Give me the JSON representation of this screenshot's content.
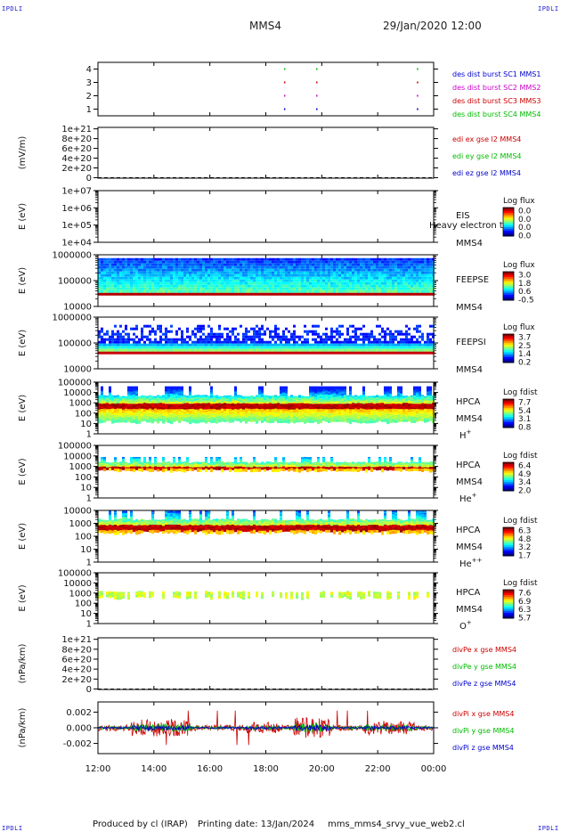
{
  "header": {
    "corner_label": "IPDLI",
    "spacecraft": "MMS4",
    "datetime": "29/Jan/2020 12:00"
  },
  "footer": {
    "produced_by": "Produced by cl (IRAP)",
    "printing_date": "Printing date: 13/Jan/2024",
    "script_name": "mms_mms4_srvy_vue_web2.cl"
  },
  "time_axis": {
    "tick_labels": [
      "12:00",
      "14:00",
      "16:00",
      "18:00",
      "20:00",
      "22:00",
      "00:00"
    ],
    "hours": [
      0,
      2,
      4,
      6,
      8,
      10,
      12
    ]
  },
  "colors": {
    "blue": "#0000cc",
    "magenta": "#cc00cc",
    "red": "#cc0000",
    "green": "#00bb00"
  },
  "chart_data": [
    {
      "id": "burst",
      "type": "scatter",
      "yticks": [
        "4",
        "3",
        "2",
        "1"
      ],
      "ylim": [
        0.5,
        4.5
      ],
      "legend": [
        {
          "text": "des dist burst SC1 MMS1",
          "color": "#0000cc"
        },
        {
          "text": "des dist burst SC2 MMS2",
          "color": "#cc00cc"
        },
        {
          "text": "des dist burst SC3 MMS3",
          "color": "#cc0000"
        },
        {
          "text": "des dist burst SC4 MMS4",
          "color": "#00bb00"
        }
      ],
      "x_hours": [
        6.65,
        7.8,
        11.4
      ]
    },
    {
      "id": "efield",
      "type": "line",
      "ylabel": "(mV/m)",
      "yticks": [
        "1e+21",
        "8e+20",
        "6e+20",
        "4e+20",
        "2e+20",
        "0"
      ],
      "ytick_values": [
        1e+21,
        8e+20,
        6e+20,
        4e+20,
        2e+20,
        0
      ],
      "ylim": [
        -1e+19,
        1.03e+21
      ],
      "legend": [
        {
          "text": "edi ex gse l2 MMS4",
          "color": "#cc0000"
        },
        {
          "text": "edi ey gse l2 MMS4",
          "color": "#00bb00"
        },
        {
          "text": "edi ez gse l2 MMS4",
          "color": "#0000cc"
        }
      ]
    },
    {
      "id": "eis",
      "type": "heatmap",
      "ylabel": "E (eV)",
      "yticks": [
        "1e+07",
        "1e+06",
        "1e+05",
        "1e+04"
      ],
      "log_range": [
        4,
        7
      ],
      "instrument": "EIS",
      "instrument_note": "Heavy electron to",
      "species": "MMS4",
      "colorbar_title": "Log flux",
      "colorbar_ticks": [
        "0.0",
        "0.0",
        "0.0",
        "0.0"
      ]
    },
    {
      "id": "feepse",
      "type": "heatmap",
      "ylabel": "E (eV)",
      "yticks": [
        "1000000",
        "100000",
        "10000"
      ],
      "log_range": [
        4,
        6
      ],
      "instrument": "FEEPSE",
      "species": "MMS4",
      "colorbar_title": "Log flux",
      "colorbar_ticks": [
        "3.0",
        "1.8",
        "0.6",
        "-0.5"
      ]
    },
    {
      "id": "feepsi",
      "type": "heatmap",
      "ylabel": "E (eV)",
      "yticks": [
        "1000000",
        "100000",
        "10000"
      ],
      "log_range": [
        4,
        6
      ],
      "instrument": "FEEPSI",
      "species": "MMS4",
      "colorbar_title": "Log flux",
      "colorbar_ticks": [
        "3.7",
        "2.5",
        "1.4",
        "0.2"
      ]
    },
    {
      "id": "hpca_h",
      "type": "heatmap",
      "ylabel": "E (eV)",
      "yticks": [
        "100000",
        "10000",
        "1000",
        "100",
        "10",
        "1"
      ],
      "log_range": [
        0,
        5
      ],
      "instrument": "HPCA",
      "species": "MMS4",
      "ion": "H",
      "ion_charge": "+",
      "colorbar_title": "Log fdist",
      "colorbar_ticks": [
        "7.7",
        "5.4",
        "3.1",
        "0.8"
      ]
    },
    {
      "id": "hpca_he",
      "type": "heatmap",
      "ylabel": "E (eV)",
      "yticks": [
        "100000",
        "10000",
        "1000",
        "100",
        "10",
        "1"
      ],
      "log_range": [
        0,
        5
      ],
      "instrument": "HPCA",
      "species": "MMS4",
      "ion": "He",
      "ion_charge": "+",
      "colorbar_title": "Log fdist",
      "colorbar_ticks": [
        "6.4",
        "4.9",
        "3.4",
        "2.0"
      ]
    },
    {
      "id": "hpca_hepp",
      "type": "heatmap",
      "ylabel": "E (eV)",
      "yticks": [
        "10000",
        "1000",
        "100",
        "10",
        "1"
      ],
      "log_range": [
        0,
        4
      ],
      "instrument": "HPCA",
      "species": "MMS4",
      "ion": "He",
      "ion_charge": "++",
      "colorbar_title": "Log fdist",
      "colorbar_ticks": [
        "6.3",
        "4.8",
        "3.2",
        "1.7"
      ]
    },
    {
      "id": "hpca_o",
      "type": "heatmap",
      "ylabel": "E (eV)",
      "yticks": [
        "100000",
        "10000",
        "1000",
        "100",
        "10",
        "1"
      ],
      "log_range": [
        0,
        5
      ],
      "instrument": "HPCA",
      "species": "MMS4",
      "ion": "O",
      "ion_charge": "+",
      "colorbar_title": "Log fdist",
      "colorbar_ticks": [
        "7.6",
        "6.9",
        "6.3",
        "5.7"
      ]
    },
    {
      "id": "divpe",
      "type": "line",
      "ylabel": "(nPa/km)",
      "yticks": [
        "1e+21",
        "8e+20",
        "6e+20",
        "4e+20",
        "2e+20",
        "0"
      ],
      "ytick_values": [
        1e+21,
        8e+20,
        6e+20,
        4e+20,
        2e+20,
        0
      ],
      "ylim": [
        -1e+19,
        1.03e+21
      ],
      "legend": [
        {
          "text": "divPe x gse MMS4",
          "color": "#cc0000"
        },
        {
          "text": "divPe y gse MMS4",
          "color": "#00bb00"
        },
        {
          "text": "divPe z gse MMS4",
          "color": "#0000cc"
        }
      ]
    },
    {
      "id": "divpi",
      "type": "line",
      "ylabel": "(nPa/km)",
      "yticks": [
        "0.002",
        "0.000",
        "-0.002"
      ],
      "ytick_values": [
        0.002,
        0.0,
        -0.002
      ],
      "ylim": [
        -0.0033,
        0.0033
      ],
      "legend": [
        {
          "text": "divPi x gse MMS4",
          "color": "#cc0000"
        },
        {
          "text": "divPi y gse MMS4",
          "color": "#00bb00"
        },
        {
          "text": "divPi z gse MMS4",
          "color": "#0000cc"
        }
      ]
    }
  ]
}
